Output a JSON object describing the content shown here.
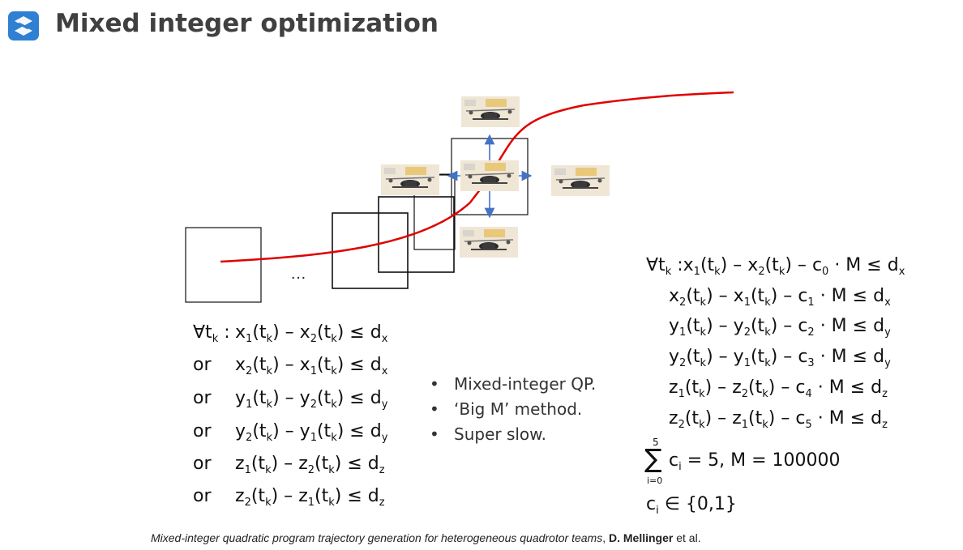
{
  "header": {
    "title": "Mixed integer optimization",
    "logo_icon": "s-logo-icon",
    "accent_color": "#2f7fd2"
  },
  "diagram": {
    "ellipsis": "…",
    "trajectory_color": "#e00000",
    "arrow_color": "#4472c4"
  },
  "left_constraints": [
    {
      "prefix": "∀t",
      "prefix_sub": "k",
      "colon": " :",
      "lhs": "x",
      "lhs_sub": "1",
      "arg1": "(t",
      "arg1_sub": "k",
      "close1": ")",
      "minus": " – ",
      "rhs": "x",
      "rhs_sub": "2",
      "arg2": "(t",
      "arg2_sub": "k",
      "close2": ")",
      "leq": " ≤ ",
      "bound": "d",
      "bound_sub": "x"
    },
    {
      "prefix": "or",
      "prefix_sub": "",
      "colon": "",
      "lhs": "x",
      "lhs_sub": "2",
      "arg1": "(t",
      "arg1_sub": "k",
      "close1": ")",
      "minus": " – ",
      "rhs": "x",
      "rhs_sub": "1",
      "arg2": "(t",
      "arg2_sub": "k",
      "close2": ")",
      "leq": " ≤ ",
      "bound": "d",
      "bound_sub": "x"
    },
    {
      "prefix": "or",
      "prefix_sub": "",
      "colon": "",
      "lhs": "y",
      "lhs_sub": "1",
      "arg1": "(t",
      "arg1_sub": "k",
      "close1": ")",
      "minus": " – ",
      "rhs": "y",
      "rhs_sub": "2",
      "arg2": "(t",
      "arg2_sub": "k",
      "close2": ")",
      "leq": " ≤ ",
      "bound": "d",
      "bound_sub": "y"
    },
    {
      "prefix": "or",
      "prefix_sub": "",
      "colon": "",
      "lhs": "y",
      "lhs_sub": "2",
      "arg1": "(t",
      "arg1_sub": "k",
      "close1": ")",
      "minus": " – ",
      "rhs": "y",
      "rhs_sub": "1",
      "arg2": "(t",
      "arg2_sub": "k",
      "close2": ")",
      "leq": " ≤ ",
      "bound": "d",
      "bound_sub": "y"
    },
    {
      "prefix": "or",
      "prefix_sub": "",
      "colon": "",
      "lhs": "z",
      "lhs_sub": "1",
      "arg1": "(t",
      "arg1_sub": "k",
      "close1": ")",
      "minus": " – ",
      "rhs": "z",
      "rhs_sub": "2",
      "arg2": "(t",
      "arg2_sub": "k",
      "close2": ")",
      "leq": " ≤ ",
      "bound": "d",
      "bound_sub": "z"
    },
    {
      "prefix": "or",
      "prefix_sub": "",
      "colon": "",
      "lhs": "z",
      "lhs_sub": "2",
      "arg1": "(t",
      "arg1_sub": "k",
      "close1": ")",
      "minus": " – ",
      "rhs": "z",
      "rhs_sub": "1",
      "arg2": "(t",
      "arg2_sub": "k",
      "close2": ")",
      "leq": " ≤ ",
      "bound": "d",
      "bound_sub": "z"
    }
  ],
  "right_constraints": [
    {
      "prefix": "∀t",
      "prefix_sub": "k",
      "colon": " :",
      "lhs": "x",
      "lhs_sub": "1",
      "arg1": "(t",
      "arg1_sub": "k",
      "close1": ")",
      "minus": " – ",
      "rhs": "x",
      "rhs_sub": "2",
      "arg2": "(t",
      "arg2_sub": "k",
      "close2": ")",
      "minus2": " – ",
      "c": "c",
      "c_sub": "0",
      "mult": " · M ",
      "leq": " ≤ ",
      "bound": "d",
      "bound_sub": "x"
    },
    {
      "prefix": "",
      "prefix_sub": "",
      "colon": "",
      "lhs": "x",
      "lhs_sub": "2",
      "arg1": "(t",
      "arg1_sub": "k",
      "close1": ")",
      "minus": " – ",
      "rhs": "x",
      "rhs_sub": "1",
      "arg2": "(t",
      "arg2_sub": "k",
      "close2": ")",
      "minus2": " – ",
      "c": "c",
      "c_sub": "1",
      "mult": " · M ",
      "leq": " ≤ ",
      "bound": "d",
      "bound_sub": "x"
    },
    {
      "prefix": "",
      "prefix_sub": "",
      "colon": "",
      "lhs": "y",
      "lhs_sub": "1",
      "arg1": "(t",
      "arg1_sub": "k",
      "close1": ")",
      "minus": " – ",
      "rhs": "y",
      "rhs_sub": "2",
      "arg2": "(t",
      "arg2_sub": "k",
      "close2": ")",
      "minus2": " – ",
      "c": "c",
      "c_sub": "2",
      "mult": " · M ",
      "leq": " ≤ ",
      "bound": "d",
      "bound_sub": "y"
    },
    {
      "prefix": "",
      "prefix_sub": "",
      "colon": "",
      "lhs": "y",
      "lhs_sub": "2",
      "arg1": "(t",
      "arg1_sub": "k",
      "close1": ")",
      "minus": " – ",
      "rhs": "y",
      "rhs_sub": "1",
      "arg2": "(t",
      "arg2_sub": "k",
      "close2": ")",
      "minus2": " – ",
      "c": "c",
      "c_sub": "3",
      "mult": " · M ",
      "leq": " ≤ ",
      "bound": "d",
      "bound_sub": "y"
    },
    {
      "prefix": "",
      "prefix_sub": "",
      "colon": "",
      "lhs": "z",
      "lhs_sub": "1",
      "arg1": "(t",
      "arg1_sub": "k",
      "close1": ")",
      "minus": " – ",
      "rhs": "z",
      "rhs_sub": "2",
      "arg2": "(t",
      "arg2_sub": "k",
      "close2": ")",
      "minus2": " – ",
      "c": "c",
      "c_sub": "4",
      "mult": " · M ",
      "leq": " ≤ ",
      "bound": "d",
      "bound_sub": "z"
    },
    {
      "prefix": "",
      "prefix_sub": "",
      "colon": "",
      "lhs": "z",
      "lhs_sub": "2",
      "arg1": "(t",
      "arg1_sub": "k",
      "close1": ")",
      "minus": " – ",
      "rhs": "z",
      "rhs_sub": "1",
      "arg2": "(t",
      "arg2_sub": "k",
      "close2": ")",
      "minus2": " – ",
      "c": "c",
      "c_sub": "5",
      "mult": " · M ",
      "leq": " ≤ ",
      "bound": "d",
      "bound_sub": "z"
    }
  ],
  "sum_equation": {
    "sigma": "∑",
    "upper": "5",
    "lower": "i=0",
    "term": "c",
    "term_sub": "i",
    "rest": " = 5, M  = 100000"
  },
  "binary_equation": {
    "var": "c",
    "var_sub": "i",
    "rest": " ∈ {0,1}"
  },
  "bullets": [
    "Mixed-integer QP.",
    "‘Big M’ method.",
    "Super slow."
  ],
  "bullet_glyph": "•",
  "citation": {
    "title": "Mixed-integer quadratic program trajectory generation for heterogeneous quadrotor teams",
    "sep": ", ",
    "author": "D. Mellinger",
    "suffix": " et al."
  }
}
